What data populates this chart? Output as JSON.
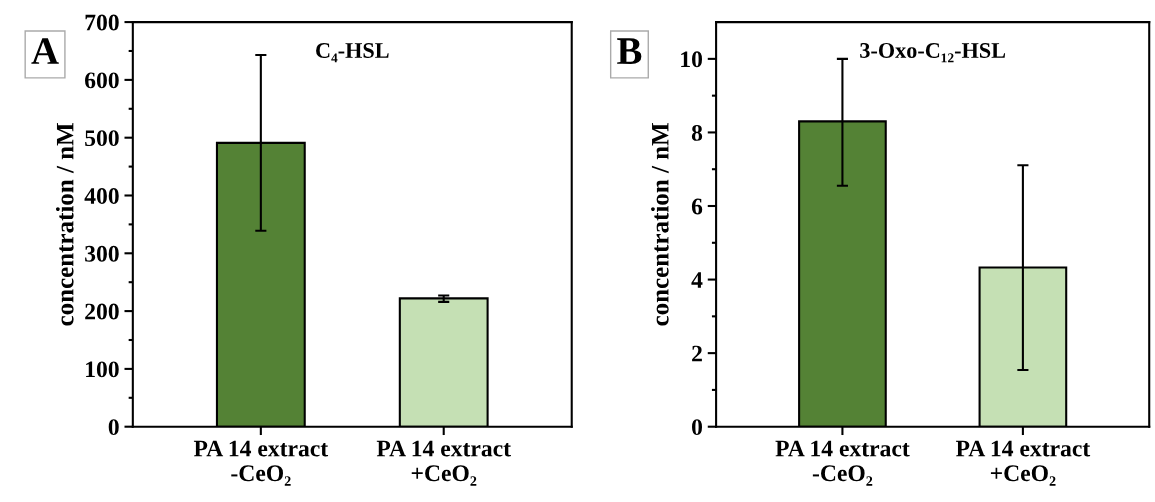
{
  "chart_data": [
    {
      "type": "bar",
      "title": "C₄-HSL",
      "ylabel": "concentration / nM",
      "annotations": [
        "A"
      ],
      "categories": [
        "PA 14 extract\n-CeO₂",
        "PA 14 extract\n+CeO₂"
      ],
      "values": [
        491,
        222
      ],
      "colors": [
        "#548235",
        "#c5e0b4"
      ],
      "errors": [
        [
          339,
          643
        ],
        [
          216,
          227
        ]
      ],
      "ylim": [
        0,
        700
      ],
      "yticks": [
        0,
        100,
        200,
        300,
        400,
        500,
        600,
        700
      ],
      "grid": false,
      "legend": false
    },
    {
      "type": "bar",
      "title": "3-Oxo-C₁₂-HSL",
      "ylabel": "concentration / nM",
      "annotations": [
        "B"
      ],
      "categories": [
        "PA 14 extract\n-CeO₂",
        "PA 14 extract\n+CeO₂"
      ],
      "values": [
        8.3,
        4.33
      ],
      "colors": [
        "#548235",
        "#c5e0b4"
      ],
      "errors": [
        [
          6.55,
          10.0
        ],
        [
          1.54,
          7.11
        ]
      ],
      "ylim": [
        0,
        11
      ],
      "yticks": [
        0,
        2,
        4,
        6,
        8,
        10
      ],
      "grid": false,
      "legend": false
    }
  ]
}
